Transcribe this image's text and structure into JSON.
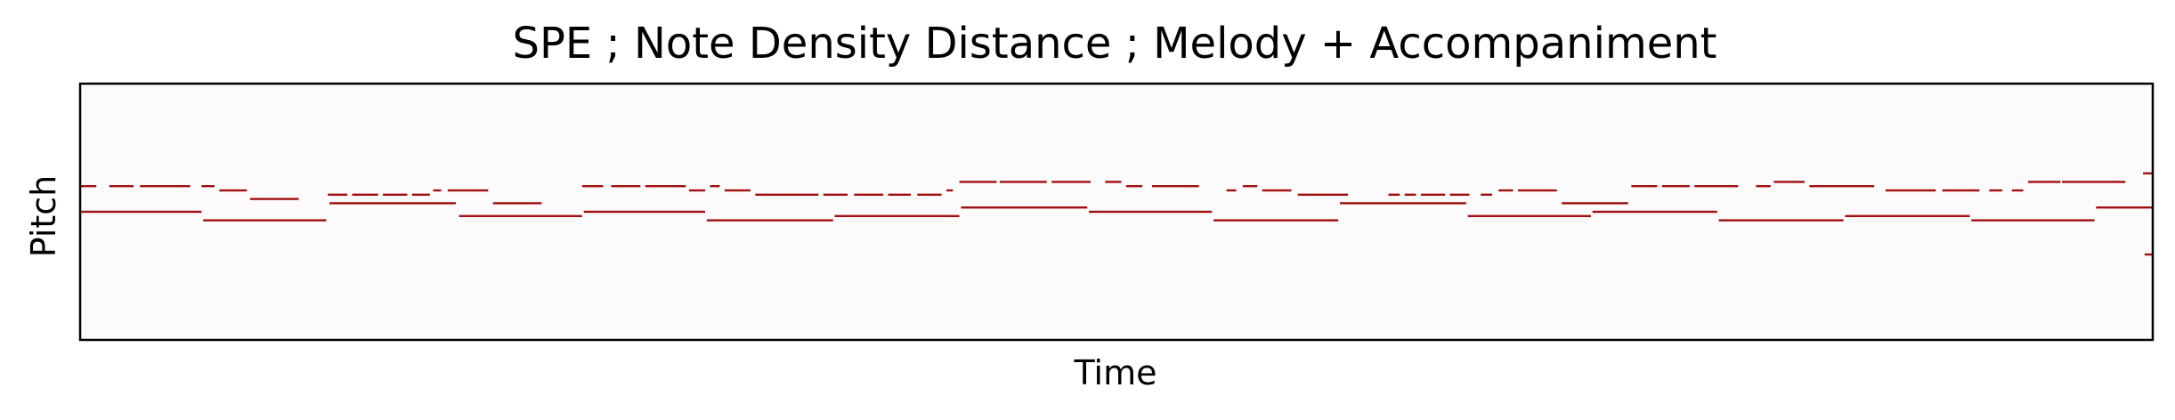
{
  "chart_data": {
    "type": "piano-roll",
    "title": "SPE ; Note Density Distance ; Melody + Accompaniment",
    "xlabel": "Time",
    "ylabel": "Pitch",
    "xlim": [
      0,
      128
    ],
    "ylim": [
      0,
      60
    ],
    "xticks": false,
    "yticks": false,
    "grid": false,
    "background_color": "#fdfafc",
    "note_color": "#a01010",
    "series": [
      {
        "notes": [
          [
            0,
            1,
            36
          ],
          [
            1.8,
            3.3,
            36
          ],
          [
            3.7,
            6.8,
            36
          ],
          [
            7.5,
            8.3,
            36
          ],
          [
            8.6,
            10.3,
            35
          ],
          [
            10.5,
            13.5,
            33
          ],
          [
            15.3,
            16.5,
            34
          ],
          [
            16.8,
            18.4,
            34
          ],
          [
            18.7,
            20.2,
            34
          ],
          [
            20.5,
            21.6,
            34
          ],
          [
            21.8,
            22.3,
            35
          ],
          [
            22.7,
            25.2,
            35
          ],
          [
            25.5,
            28.5,
            32
          ],
          [
            31,
            32.3,
            36
          ],
          [
            32.8,
            34.6,
            36
          ],
          [
            34.9,
            37.4,
            36
          ],
          [
            37.6,
            38.6,
            35
          ],
          [
            38.9,
            39.5,
            36
          ],
          [
            39.8,
            41.4,
            35
          ],
          [
            41.7,
            45.6,
            34
          ],
          [
            45.9,
            47.4,
            34
          ],
          [
            47.8,
            49.6,
            34
          ],
          [
            49.9,
            51.3,
            34
          ],
          [
            51.7,
            53.2,
            34
          ],
          [
            53.5,
            53.9,
            35
          ],
          [
            54.3,
            56.6,
            37
          ],
          [
            56.8,
            59.7,
            37
          ],
          [
            60,
            62.4,
            37
          ],
          [
            63.3,
            64.3,
            37
          ],
          [
            64.6,
            65.6,
            36
          ],
          [
            66.2,
            69.1,
            36
          ],
          [
            70.8,
            71.4,
            35
          ],
          [
            71.8,
            72.7,
            36
          ],
          [
            73,
            74.8,
            35
          ],
          [
            75.2,
            78.3,
            34
          ],
          [
            80.8,
            81.5,
            34
          ],
          [
            81.8,
            82.5,
            34
          ],
          [
            82.8,
            84.3,
            34
          ],
          [
            84.6,
            85.8,
            34
          ],
          [
            86.5,
            87.2,
            34
          ],
          [
            87.6,
            88.5,
            35
          ],
          [
            88.8,
            91.2,
            35
          ],
          [
            91.5,
            95.6,
            32
          ],
          [
            95.8,
            97.4,
            36
          ],
          [
            97.7,
            99.4,
            36
          ],
          [
            99.7,
            102.4,
            36
          ],
          [
            103.5,
            104.4,
            36
          ],
          [
            104.6,
            106.5,
            37
          ],
          [
            106.8,
            110.8,
            36
          ],
          [
            111.5,
            114.6,
            35
          ],
          [
            115,
            117.3,
            35
          ],
          [
            117.9,
            118.7,
            35
          ],
          [
            119.3,
            120,
            35
          ],
          [
            120.3,
            122.3,
            37
          ],
          [
            122.4,
            126.3,
            37
          ],
          [
            127.4,
            128,
            39
          ]
        ]
      },
      {
        "notes": [
          [
            0,
            7.5,
            30
          ],
          [
            7.6,
            15.2,
            28
          ],
          [
            15.4,
            23.2,
            32
          ],
          [
            23.4,
            31,
            29
          ],
          [
            31.1,
            38.6,
            30
          ],
          [
            38.7,
            46.5,
            28
          ],
          [
            46.6,
            54.3,
            29
          ],
          [
            54.4,
            62.2,
            31
          ],
          [
            62.3,
            69.9,
            30
          ],
          [
            70,
            77.7,
            28
          ],
          [
            77.8,
            85.6,
            32
          ],
          [
            85.7,
            93.3,
            29
          ],
          [
            93.4,
            101.1,
            30
          ],
          [
            101.2,
            108.9,
            28
          ],
          [
            109,
            116.7,
            29
          ],
          [
            116.8,
            124.4,
            28
          ],
          [
            124.5,
            128,
            31
          ]
        ]
      },
      {
        "notes": [
          [
            127.5,
            128,
            20
          ]
        ]
      }
    ]
  }
}
